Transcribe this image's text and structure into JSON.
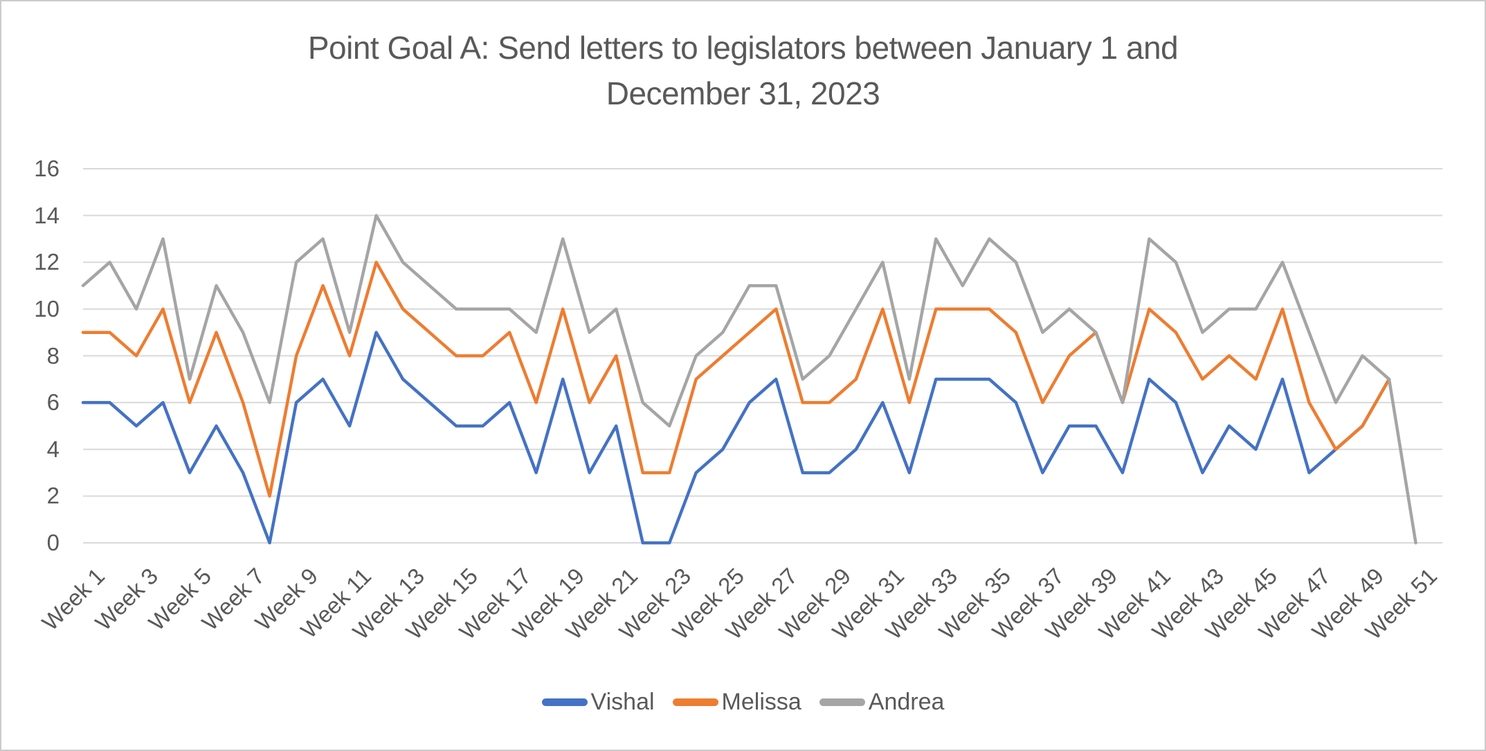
{
  "header": {
    "title_line1": "Point Goal A: Send letters to legislators between January 1 and",
    "title_line2": "December 31, 2023"
  },
  "colors": {
    "vishal": "#4472C4",
    "melissa": "#ED7D31",
    "andrea": "#A5A5A5",
    "gridline": "#D9D9D9",
    "text": "#595959"
  },
  "legend": {
    "entries": [
      {
        "label": "Vishal",
        "color": "#4472C4"
      },
      {
        "label": "Melissa",
        "color": "#ED7D31"
      },
      {
        "label": "Andrea",
        "color": "#A5A5A5"
      }
    ],
    "position": "bottom"
  },
  "chart_data": {
    "type": "line",
    "title": "Point Goal A: Send letters to legislators between January 1 and December 31, 2023",
    "xlabel": "",
    "ylabel": "",
    "ylim": [
      0,
      16
    ],
    "ytick_step": 2,
    "ytick_labels": [
      "0",
      "2",
      "4",
      "6",
      "8",
      "10",
      "12",
      "14",
      "16"
    ],
    "grid": "horizontal",
    "legend_position": "bottom",
    "categories": [
      "Week 1",
      "Week 2",
      "Week 3",
      "Week 4",
      "Week 5",
      "Week 6",
      "Week 7",
      "Week 8",
      "Week 9",
      "Week 10",
      "Week 11",
      "Week 12",
      "Week 13",
      "Week 14",
      "Week 15",
      "Week 16",
      "Week 17",
      "Week 18",
      "Week 19",
      "Week 20",
      "Week 21",
      "Week 22",
      "Week 23",
      "Week 24",
      "Week 25",
      "Week 26",
      "Week 27",
      "Week 28",
      "Week 29",
      "Week 30",
      "Week 31",
      "Week 32",
      "Week 33",
      "Week 34",
      "Week 35",
      "Week 36",
      "Week 37",
      "Week 38",
      "Week 39",
      "Week 40",
      "Week 41",
      "Week 42",
      "Week 43",
      "Week 44",
      "Week 45",
      "Week 46",
      "Week 47",
      "Week 48",
      "Week 49",
      "Week 50",
      "Week 51",
      "Week 52"
    ],
    "x_labels_shown_every": 2,
    "series": [
      {
        "name": "Vishal",
        "color": "#4472C4",
        "values": [
          6,
          6,
          5,
          6,
          3,
          5,
          3,
          0,
          6,
          7,
          5,
          9,
          7,
          6,
          5,
          5,
          6,
          3,
          7,
          3,
          5,
          0,
          0,
          3,
          4,
          6,
          7,
          3,
          3,
          4,
          6,
          3,
          7,
          7,
          7,
          6,
          3,
          5,
          5,
          3,
          7,
          6,
          3,
          5,
          4,
          7,
          3,
          4,
          5,
          7,
          null,
          null
        ]
      },
      {
        "name": "Melissa",
        "color": "#ED7D31",
        "values": [
          9,
          9,
          8,
          10,
          6,
          9,
          6,
          2,
          8,
          11,
          8,
          12,
          10,
          9,
          8,
          8,
          9,
          6,
          10,
          6,
          8,
          3,
          3,
          7,
          8,
          9,
          10,
          6,
          6,
          7,
          10,
          6,
          10,
          10,
          10,
          9,
          6,
          8,
          9,
          6,
          10,
          9,
          7,
          8,
          7,
          10,
          6,
          4,
          5,
          7,
          null,
          null
        ]
      },
      {
        "name": "Andrea",
        "color": "#A5A5A5",
        "values": [
          11,
          12,
          10,
          13,
          7,
          11,
          9,
          6,
          12,
          13,
          9,
          14,
          12,
          11,
          10,
          10,
          10,
          9,
          13,
          9,
          10,
          6,
          5,
          8,
          9,
          11,
          11,
          7,
          8,
          10,
          12,
          7,
          13,
          11,
          13,
          12,
          9,
          10,
          9,
          6,
          13,
          12,
          9,
          10,
          10,
          12,
          9,
          6,
          8,
          7,
          0,
          null
        ]
      }
    ]
  }
}
